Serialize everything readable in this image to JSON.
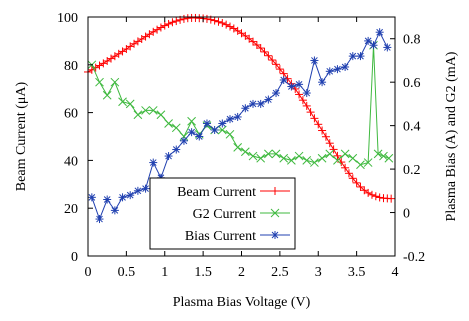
{
  "chart_data": {
    "type": "line",
    "title": "",
    "xlabel": "Plasma Bias Voltage (V)",
    "ylabel": "Beam Current (μA)",
    "y2label": "Plasma Bias (A) and G2 (mA)",
    "xlim": [
      0,
      4
    ],
    "ylim": [
      0,
      100
    ],
    "y2lim": [
      -0.2,
      0.9
    ],
    "xticks": [
      "0",
      "0.5",
      "1",
      "1.5",
      "2",
      "2.5",
      "3",
      "3.5",
      "4"
    ],
    "xtick_values": [
      0,
      0.5,
      1,
      1.5,
      2,
      2.5,
      3,
      3.5,
      4
    ],
    "yticks": [
      "0",
      "20",
      "40",
      "60",
      "80",
      "100"
    ],
    "ytick_values": [
      0,
      20,
      40,
      60,
      80,
      100
    ],
    "y2ticks": [
      "-0.2",
      "0",
      "0.2",
      "0.4",
      "0.6",
      "0.8"
    ],
    "y2tick_values": [
      -0.2,
      0,
      0.2,
      0.4,
      0.6,
      0.8
    ],
    "grid": false,
    "legend_position": "bottom-center",
    "series": [
      {
        "name": "Beam Current",
        "axis": "left",
        "color": "#ff0000",
        "marker": "plus",
        "x": [
          0.0,
          0.05,
          0.1,
          0.15,
          0.2,
          0.25,
          0.3,
          0.35,
          0.4,
          0.45,
          0.5,
          0.55,
          0.6,
          0.65,
          0.7,
          0.75,
          0.8,
          0.85,
          0.9,
          0.95,
          1.0,
          1.05,
          1.1,
          1.15,
          1.2,
          1.25,
          1.3,
          1.35,
          1.4,
          1.45,
          1.5,
          1.55,
          1.6,
          1.65,
          1.7,
          1.75,
          1.8,
          1.85,
          1.9,
          1.95,
          2.0,
          2.05,
          2.1,
          2.15,
          2.2,
          2.25,
          2.3,
          2.35,
          2.4,
          2.45,
          2.5,
          2.55,
          2.6,
          2.65,
          2.7,
          2.75,
          2.8,
          2.85,
          2.9,
          2.95,
          3.0,
          3.05,
          3.1,
          3.15,
          3.2,
          3.25,
          3.3,
          3.35,
          3.4,
          3.45,
          3.5,
          3.55,
          3.6,
          3.65,
          3.7,
          3.75,
          3.8,
          3.85,
          3.9,
          3.95
        ],
        "values": [
          77.0,
          77.9,
          78.8,
          79.7,
          80.6,
          81.6,
          82.6,
          83.6,
          84.6,
          85.6,
          86.6,
          87.7,
          88.8,
          89.8,
          90.8,
          91.8,
          92.8,
          93.8,
          94.7,
          95.6,
          96.4,
          97.1,
          97.8,
          98.3,
          98.8,
          99.2,
          99.5,
          99.6,
          99.6,
          99.5,
          99.4,
          99.2,
          98.9,
          98.5,
          98.0,
          97.5,
          96.8,
          96.0,
          95.2,
          94.2,
          93.2,
          92.1,
          90.9,
          89.7,
          88.3,
          87.0,
          85.4,
          83.8,
          82.0,
          80.2,
          78.2,
          76.3,
          74.2,
          72.1,
          69.9,
          67.6,
          65.2,
          62.8,
          60.2,
          57.6,
          55.1,
          52.5,
          49.9,
          47.2,
          44.6,
          41.9,
          39.3,
          36.9,
          34.6,
          32.5,
          30.6,
          28.9,
          27.5,
          26.4,
          25.6,
          25.0,
          24.5,
          24.2,
          24.1,
          24.0
        ]
      },
      {
        "name": "G2 Current",
        "axis": "right",
        "color": "#3fb93f",
        "marker": "cross",
        "x": [
          0.05,
          0.15,
          0.25,
          0.35,
          0.45,
          0.55,
          0.65,
          0.75,
          0.85,
          0.95,
          1.05,
          1.15,
          1.25,
          1.35,
          1.45,
          1.55,
          1.65,
          1.75,
          1.85,
          1.95,
          2.05,
          2.15,
          2.25,
          2.35,
          2.45,
          2.55,
          2.65,
          2.75,
          2.85,
          2.95,
          3.05,
          3.15,
          3.25,
          3.35,
          3.45,
          3.55,
          3.65,
          3.72,
          3.78,
          3.85,
          3.92
        ],
        "values": [
          0.68,
          0.6,
          0.54,
          0.6,
          0.51,
          0.5,
          0.45,
          0.47,
          0.47,
          0.45,
          0.41,
          0.39,
          0.35,
          0.42,
          0.36,
          0.4,
          0.38,
          0.38,
          0.36,
          0.3,
          0.28,
          0.26,
          0.25,
          0.27,
          0.27,
          0.25,
          0.24,
          0.26,
          0.24,
          0.23,
          0.25,
          0.27,
          0.24,
          0.27,
          0.25,
          0.22,
          0.23,
          0.77,
          0.27,
          0.26,
          0.25
        ]
      },
      {
        "name": "Bias Current",
        "axis": "right",
        "color": "#2040b0",
        "marker": "star",
        "x": [
          0.05,
          0.15,
          0.25,
          0.35,
          0.45,
          0.55,
          0.65,
          0.75,
          0.85,
          0.95,
          1.05,
          1.15,
          1.25,
          1.35,
          1.45,
          1.55,
          1.65,
          1.75,
          1.85,
          1.95,
          2.05,
          2.15,
          2.25,
          2.35,
          2.45,
          2.55,
          2.65,
          2.75,
          2.85,
          2.95,
          3.05,
          3.15,
          3.25,
          3.35,
          3.45,
          3.55,
          3.65,
          3.72,
          3.8,
          3.9
        ],
        "values": [
          0.07,
          -0.03,
          0.06,
          0.01,
          0.07,
          0.08,
          0.1,
          0.11,
          0.23,
          0.16,
          0.26,
          0.29,
          0.33,
          0.37,
          0.35,
          0.41,
          0.38,
          0.41,
          0.43,
          0.44,
          0.48,
          0.5,
          0.5,
          0.52,
          0.55,
          0.61,
          0.58,
          0.59,
          0.55,
          0.7,
          0.6,
          0.65,
          0.66,
          0.67,
          0.72,
          0.72,
          0.79,
          0.77,
          0.83,
          0.76
        ]
      }
    ]
  }
}
